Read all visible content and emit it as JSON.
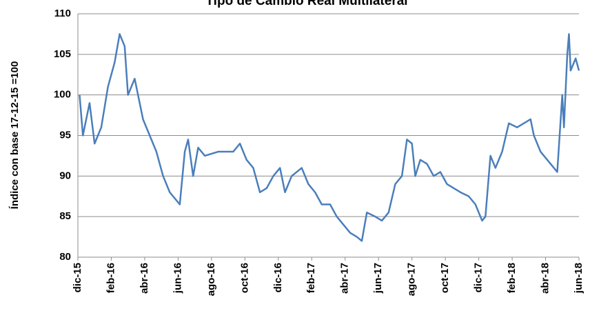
{
  "chart_data": {
    "type": "line",
    "title": "Tipo de Cambio Real Multilateral",
    "y_label": "Índice con base 17-12-15 =100",
    "x": [
      0.1,
      0.3,
      0.7,
      1.0,
      1.4,
      1.8,
      2.2,
      2.5,
      2.8,
      3.0,
      3.4,
      3.9,
      4.3,
      4.7,
      5.1,
      5.5,
      5.9,
      6.1,
      6.4,
      6.6,
      6.9,
      7.2,
      7.6,
      8.4,
      9.3,
      9.7,
      10.1,
      10.5,
      10.9,
      11.3,
      11.7,
      12.1,
      12.4,
      12.8,
      13.4,
      13.8,
      14.2,
      14.6,
      15.1,
      15.5,
      15.9,
      16.3,
      16.7,
      17.0,
      17.3,
      17.8,
      18.2,
      18.6,
      19.0,
      19.4,
      19.7,
      20.0,
      20.2,
      20.5,
      20.9,
      21.3,
      21.7,
      22.1,
      22.5,
      22.9,
      23.4,
      23.8,
      24.2,
      24.4,
      24.7,
      25.0,
      25.4,
      25.8,
      26.3,
      26.7,
      27.1,
      27.3,
      27.7,
      28.3,
      28.7,
      29.0,
      29.1,
      29.3,
      29.4,
      29.5,
      29.8,
      30.0
    ],
    "series": [
      {
        "name": "Tipo de Cambio Real Multilateral",
        "color": "#4a7ebb",
        "values": [
          100,
          95,
          99,
          94,
          96,
          101,
          104,
          107.5,
          106,
          100,
          102,
          97,
          95,
          93,
          90,
          88,
          87,
          86.5,
          93,
          94.5,
          90,
          93.5,
          92.5,
          93,
          93,
          94,
          92,
          91,
          88,
          88.5,
          90,
          91,
          88,
          90,
          91,
          89,
          88,
          86.5,
          86.5,
          85,
          84,
          83,
          82.5,
          82,
          85.5,
          85,
          84.5,
          85.5,
          89,
          90,
          94.5,
          94,
          90,
          92,
          91.5,
          90,
          90.5,
          89,
          88.5,
          88,
          87.5,
          86.5,
          84.5,
          85,
          92.5,
          91,
          93,
          96.5,
          96,
          96.5,
          97,
          95,
          93,
          91.5,
          90.5,
          100,
          96,
          105,
          107.5,
          103,
          104.5,
          103
        ]
      }
    ],
    "xlim": [
      0,
      30
    ],
    "xticks": [
      {
        "value": 0,
        "label": "dic-15"
      },
      {
        "value": 2,
        "label": "feb-16"
      },
      {
        "value": 4,
        "label": "abr-16"
      },
      {
        "value": 6,
        "label": "jun-16"
      },
      {
        "value": 8,
        "label": "ago-16"
      },
      {
        "value": 10,
        "label": "oct-16"
      },
      {
        "value": 12,
        "label": "dic-16"
      },
      {
        "value": 14,
        "label": "feb-17"
      },
      {
        "value": 16,
        "label": "abr-17"
      },
      {
        "value": 18,
        "label": "jun-17"
      },
      {
        "value": 20,
        "label": "ago-17"
      },
      {
        "value": 22,
        "label": "oct-17"
      },
      {
        "value": 24,
        "label": "dic-17"
      },
      {
        "value": 26,
        "label": "feb-18"
      },
      {
        "value": 28,
        "label": "abr-18"
      },
      {
        "value": 30,
        "label": "jun-18"
      }
    ],
    "ylim": [
      80,
      110
    ],
    "yticks": [
      80,
      85,
      90,
      95,
      100,
      105,
      110
    ],
    "grid": true
  }
}
